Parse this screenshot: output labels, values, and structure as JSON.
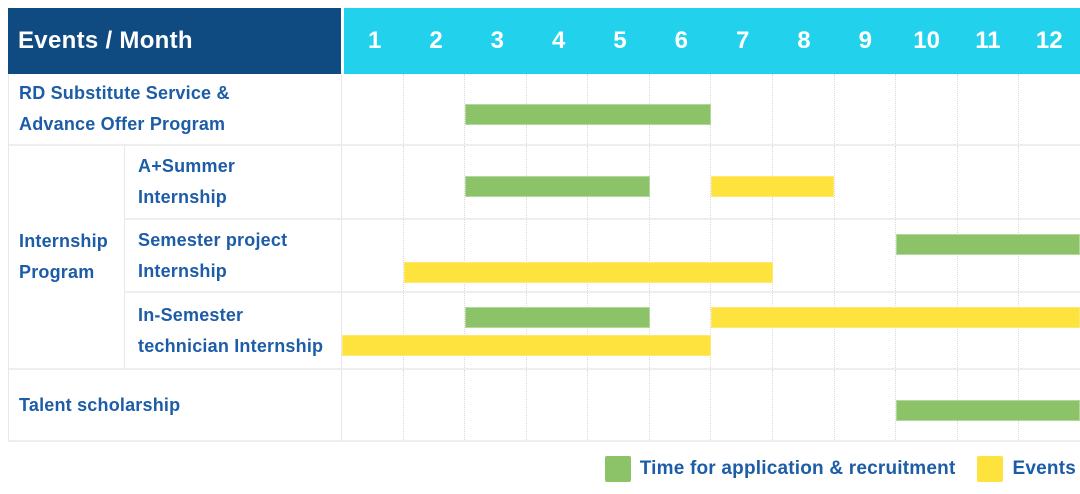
{
  "colors": {
    "navy": "#0f4b81",
    "cyan": "#22d2ec",
    "green": "#8cc368",
    "yellow": "#fee23e",
    "blue-text": "#1d5ca6"
  },
  "table": {
    "title_cell": "Events / Month",
    "months": [
      "1",
      "2",
      "3",
      "4",
      "5",
      "6",
      "7",
      "8",
      "9",
      "10",
      "11",
      "12"
    ]
  },
  "legend": {
    "items": [
      {
        "name": "application-recruitment",
        "color": "#8cc368",
        "label": "Time for application & recruitment"
      },
      {
        "name": "events",
        "color": "#fee23e",
        "label": "Events"
      }
    ]
  },
  "chart_data": {
    "type": "bar",
    "subtype": "gantt-table",
    "title": "Events / Month",
    "x_axis": {
      "label": "Month",
      "ticks": [
        "1",
        "2",
        "3",
        "4",
        "5",
        "6",
        "7",
        "8",
        "9",
        "10",
        "11",
        "12"
      ],
      "range": [
        1,
        12
      ]
    },
    "legend_position": "bottom-right",
    "series_legend": [
      {
        "name": "Time for application & recruitment",
        "color": "#8cc368"
      },
      {
        "name": "Events",
        "color": "#fee23e"
      }
    ],
    "group": {
      "label": "Internship Program",
      "label_lines": [
        "Internship",
        "Program"
      ],
      "row_indexes": [
        1,
        2,
        3
      ]
    },
    "rows": [
      {
        "label": "RD Substitute Service & Advance Offer Program",
        "label_lines": [
          "RD Substitute Service &",
          "Advance Offer Program"
        ],
        "in_group": false,
        "bars": [
          {
            "series": "Time for application & recruitment",
            "color": "green",
            "start_month": 3,
            "end_month": 6,
            "lane": "single"
          }
        ]
      },
      {
        "label": "A+Summer Internship",
        "label_lines": [
          "A+Summer",
          "Internship"
        ],
        "in_group": true,
        "bars": [
          {
            "series": "Time for application & recruitment",
            "color": "green",
            "start_month": 3,
            "end_month": 5,
            "lane": "single"
          },
          {
            "series": "Events",
            "color": "yellow",
            "start_month": 7,
            "end_month": 8,
            "lane": "single"
          }
        ]
      },
      {
        "label": "Semester project Internship",
        "label_lines": [
          "Semester project",
          "Internship"
        ],
        "in_group": true,
        "bars": [
          {
            "series": "Time for application & recruitment",
            "color": "green",
            "start_month": 10,
            "end_month": 12,
            "lane": "top"
          },
          {
            "series": "Events",
            "color": "yellow",
            "start_month": 2,
            "end_month": 7,
            "lane": "bottom"
          }
        ]
      },
      {
        "label": "In-Semester technician Internship",
        "label_lines": [
          "In-Semester",
          "technician Internship"
        ],
        "in_group": true,
        "bars": [
          {
            "series": "Time for application & recruitment",
            "color": "green",
            "start_month": 3,
            "end_month": 5,
            "lane": "top"
          },
          {
            "series": "Events",
            "color": "yellow",
            "start_month": 7,
            "end_month": 12,
            "lane": "top"
          },
          {
            "series": "Events",
            "color": "yellow",
            "start_month": 1,
            "end_month": 6,
            "lane": "bottom"
          }
        ]
      },
      {
        "label": "Talent scholarship",
        "label_lines": [
          "Talent scholarship"
        ],
        "in_group": false,
        "bars": [
          {
            "series": "Time for application & recruitment",
            "color": "green",
            "start_month": 10,
            "end_month": 12,
            "lane": "single"
          }
        ]
      }
    ]
  }
}
